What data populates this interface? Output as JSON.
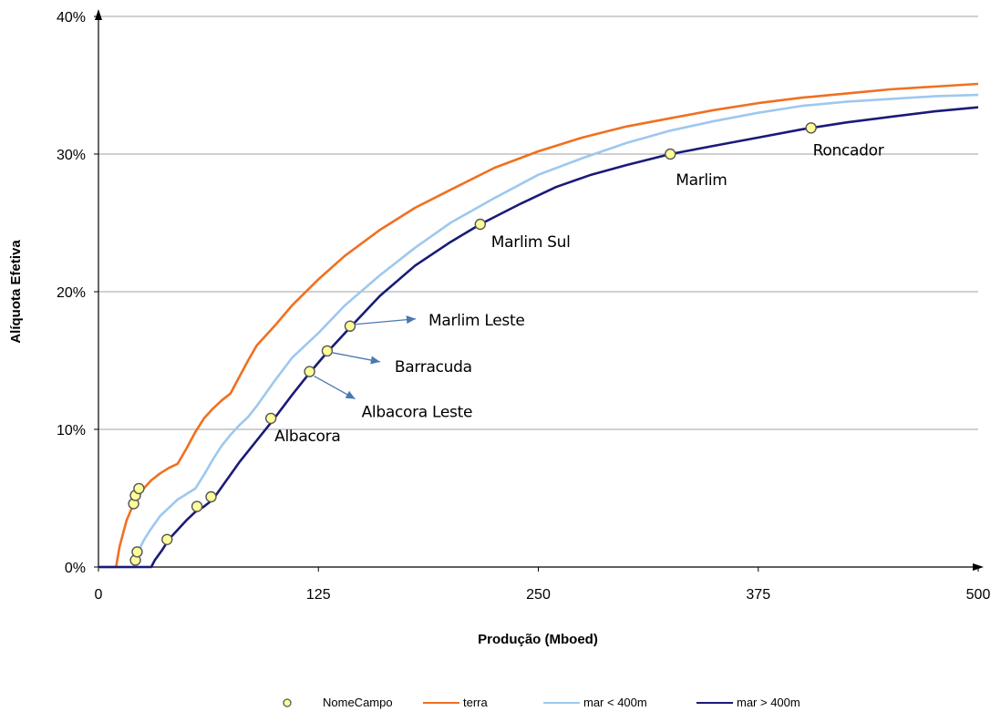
{
  "chart_data": {
    "type": "line",
    "xlabel": "Produção (Mboed)",
    "ylabel": "Alíquota Efetiva",
    "xlim": [
      0,
      500
    ],
    "ylim": [
      0,
      0.4
    ],
    "x_ticks": [
      0,
      125,
      250,
      375,
      500
    ],
    "x_tick_labels": [
      "0",
      "125",
      "250",
      "375",
      "500"
    ],
    "y_ticks": [
      0,
      0.1,
      0.2,
      0.3,
      0.4
    ],
    "y_tick_labels": [
      "0%",
      "10%",
      "20%",
      "30%",
      "40%"
    ],
    "grid": "horizontal",
    "legend_position": "bottom",
    "series": [
      {
        "name": "terra",
        "kind": "line",
        "color": "#f07020",
        "points": [
          [
            0,
            0
          ],
          [
            10,
            0
          ],
          [
            12,
            0.015
          ],
          [
            16,
            0.034
          ],
          [
            20,
            0.046
          ],
          [
            25,
            0.056
          ],
          [
            30,
            0.063
          ],
          [
            35,
            0.068
          ],
          [
            40,
            0.072
          ],
          [
            45,
            0.075
          ],
          [
            50,
            0.086
          ],
          [
            55,
            0.098
          ],
          [
            60,
            0.108
          ],
          [
            65,
            0.115
          ],
          [
            70,
            0.121
          ],
          [
            75,
            0.126
          ],
          [
            80,
            0.138
          ],
          [
            85,
            0.15
          ],
          [
            90,
            0.161
          ],
          [
            100,
            0.175
          ],
          [
            110,
            0.19
          ],
          [
            125,
            0.209
          ],
          [
            140,
            0.226
          ],
          [
            160,
            0.245
          ],
          [
            180,
            0.261
          ],
          [
            200,
            0.274
          ],
          [
            225,
            0.29
          ],
          [
            250,
            0.302
          ],
          [
            275,
            0.312
          ],
          [
            300,
            0.32
          ],
          [
            325,
            0.326
          ],
          [
            350,
            0.332
          ],
          [
            375,
            0.337
          ],
          [
            400,
            0.341
          ],
          [
            425,
            0.344
          ],
          [
            450,
            0.347
          ],
          [
            475,
            0.349
          ],
          [
            500,
            0.351
          ]
        ]
      },
      {
        "name": "mar < 400m",
        "kind": "line",
        "color": "#9ec8ee",
        "points": [
          [
            0,
            0
          ],
          [
            20,
            0
          ],
          [
            22,
            0.01
          ],
          [
            26,
            0.02
          ],
          [
            30,
            0.028
          ],
          [
            35,
            0.037
          ],
          [
            40,
            0.043
          ],
          [
            45,
            0.049
          ],
          [
            50,
            0.053
          ],
          [
            55,
            0.057
          ],
          [
            60,
            0.067
          ],
          [
            65,
            0.078
          ],
          [
            70,
            0.088
          ],
          [
            75,
            0.096
          ],
          [
            80,
            0.103
          ],
          [
            85,
            0.109
          ],
          [
            90,
            0.117
          ],
          [
            100,
            0.135
          ],
          [
            110,
            0.152
          ],
          [
            125,
            0.17
          ],
          [
            140,
            0.19
          ],
          [
            160,
            0.212
          ],
          [
            180,
            0.232
          ],
          [
            200,
            0.25
          ],
          [
            225,
            0.268
          ],
          [
            250,
            0.285
          ],
          [
            275,
            0.297
          ],
          [
            300,
            0.308
          ],
          [
            325,
            0.317
          ],
          [
            350,
            0.324
          ],
          [
            375,
            0.33
          ],
          [
            400,
            0.335
          ],
          [
            425,
            0.338
          ],
          [
            450,
            0.34
          ],
          [
            475,
            0.342
          ],
          [
            500,
            0.343
          ]
        ]
      },
      {
        "name": "mar > 400m",
        "kind": "line",
        "color": "#1a1a7a",
        "points": [
          [
            0,
            0
          ],
          [
            30,
            0
          ],
          [
            32,
            0.005
          ],
          [
            36,
            0.012
          ],
          [
            40,
            0.02
          ],
          [
            45,
            0.027
          ],
          [
            50,
            0.034
          ],
          [
            55,
            0.04
          ],
          [
            60,
            0.044
          ],
          [
            65,
            0.049
          ],
          [
            70,
            0.058
          ],
          [
            75,
            0.067
          ],
          [
            80,
            0.076
          ],
          [
            90,
            0.092
          ],
          [
            100,
            0.108
          ],
          [
            110,
            0.125
          ],
          [
            120,
            0.141
          ],
          [
            130,
            0.156
          ],
          [
            143,
            0.174
          ],
          [
            160,
            0.197
          ],
          [
            180,
            0.219
          ],
          [
            200,
            0.236
          ],
          [
            217,
            0.249
          ],
          [
            240,
            0.264
          ],
          [
            260,
            0.276
          ],
          [
            280,
            0.285
          ],
          [
            300,
            0.292
          ],
          [
            325,
            0.3
          ],
          [
            350,
            0.306
          ],
          [
            375,
            0.312
          ],
          [
            400,
            0.318
          ],
          [
            425,
            0.323
          ],
          [
            450,
            0.327
          ],
          [
            475,
            0.331
          ],
          [
            500,
            0.334
          ]
        ]
      },
      {
        "name": "NomeCampo",
        "kind": "scatter",
        "color": "#ffff99",
        "points": [
          [
            20,
            0.046
          ],
          [
            21,
            0.052
          ],
          [
            23,
            0.057
          ],
          [
            21,
            0.005
          ],
          [
            22,
            0.011
          ],
          [
            39,
            0.02
          ],
          [
            56,
            0.044
          ],
          [
            64,
            0.051
          ],
          [
            98,
            0.108
          ],
          [
            120,
            0.142
          ],
          [
            130,
            0.157
          ],
          [
            143,
            0.175
          ],
          [
            217,
            0.249
          ],
          [
            325,
            0.3
          ],
          [
            405,
            0.319
          ]
        ]
      }
    ],
    "annotations": [
      {
        "text": "Roncador",
        "x": 405,
        "y": 0.319
      },
      {
        "text": "Marlim",
        "x": 325,
        "y": 0.3
      },
      {
        "text": "Marlim Sul",
        "x": 217,
        "y": 0.249
      },
      {
        "text": "Marlim Leste",
        "x": 143,
        "y": 0.175
      },
      {
        "text": "Barracuda",
        "x": 130,
        "y": 0.157
      },
      {
        "text": "Albacora Leste",
        "x": 120,
        "y": 0.142
      },
      {
        "text": "Albacora",
        "x": 98,
        "y": 0.108
      }
    ]
  }
}
